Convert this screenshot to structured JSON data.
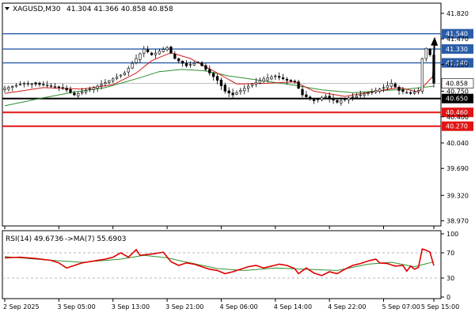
{
  "colors": {
    "background": "#ffffff",
    "grid": "#c8c8c8",
    "candle": "#000000",
    "ma_fast": "#d11b1b",
    "ma_slow": "#2f8f2f",
    "level_blue": "#2a5da8",
    "level_black": "#000000",
    "level_red": "#e11515",
    "rsi_line": "#e00000",
    "rsi_ma": "#2f8f2f",
    "arrow": "#000000"
  },
  "chart_data": [
    {
      "type": "candlestick",
      "title": "XAGUSD,M30",
      "ohlc": "41.304 41.366 40.858 40.858",
      "ylim": [
        38.9,
        41.96
      ],
      "y_ticks": [
        "41.820",
        "41.470",
        "41.120",
        "40.750",
        "40.400",
        "40.040",
        "39.690",
        "39.320",
        "38.970"
      ],
      "x_ticks": [
        "2 Sep 2025",
        "3 Sep 05:00",
        "3 Sep 13:00",
        "3 Sep 21:00",
        "4 Sep 06:00",
        "4 Sep 14:00",
        "4 Sep 22:00",
        "5 Sep 07:00",
        "5 Sep 15:00"
      ],
      "levels": [
        {
          "value": 41.54,
          "label": "41.540",
          "color": "blue"
        },
        {
          "value": 41.33,
          "label": "41.330",
          "color": "blue"
        },
        {
          "value": 41.14,
          "label": "41.140",
          "color": "blue"
        },
        {
          "value": 40.65,
          "label": "40.650",
          "color": "black"
        },
        {
          "value": 40.46,
          "label": "40.460",
          "color": "red"
        },
        {
          "value": 40.27,
          "label": "40.270",
          "color": "red"
        }
      ],
      "current_price": {
        "value": 40.858,
        "label": "40.858"
      },
      "close_anchors": [
        [
          0,
          40.79
        ],
        [
          5,
          40.86
        ],
        [
          10,
          40.84
        ],
        [
          15,
          40.8
        ],
        [
          18,
          40.7
        ],
        [
          21,
          40.76
        ],
        [
          24,
          40.82
        ],
        [
          28,
          40.92
        ],
        [
          31,
          41.0
        ],
        [
          34,
          41.2
        ],
        [
          36,
          41.33
        ],
        [
          38,
          41.25
        ],
        [
          40,
          41.3
        ],
        [
          42,
          41.35
        ],
        [
          44,
          41.2
        ],
        [
          47,
          41.1
        ],
        [
          50,
          41.15
        ],
        [
          53,
          41.0
        ],
        [
          55,
          40.9
        ],
        [
          57,
          40.75
        ],
        [
          59,
          40.7
        ],
        [
          61,
          40.76
        ],
        [
          64,
          40.85
        ],
        [
          67,
          40.92
        ],
        [
          70,
          40.96
        ],
        [
          73,
          40.9
        ],
        [
          75,
          40.88
        ],
        [
          77,
          40.7
        ],
        [
          80,
          40.62
        ],
        [
          83,
          40.68
        ],
        [
          86,
          40.6
        ],
        [
          89,
          40.66
        ],
        [
          92,
          40.7
        ],
        [
          95,
          40.74
        ],
        [
          98,
          40.8
        ],
        [
          100,
          40.86
        ],
        [
          102,
          40.76
        ],
        [
          105,
          40.72
        ],
        [
          107,
          40.76
        ],
        [
          108,
          41.2
        ],
        [
          109,
          41.34
        ],
        [
          110,
          41.25
        ],
        [
          111,
          40.86
        ]
      ],
      "ma_fast_anchors": [
        [
          0,
          40.72
        ],
        [
          10,
          40.8
        ],
        [
          20,
          40.78
        ],
        [
          28,
          40.84
        ],
        [
          34,
          41.0
        ],
        [
          38,
          41.17
        ],
        [
          43,
          41.28
        ],
        [
          48,
          41.2
        ],
        [
          55,
          41.0
        ],
        [
          60,
          40.85
        ],
        [
          68,
          40.86
        ],
        [
          75,
          40.88
        ],
        [
          80,
          40.75
        ],
        [
          88,
          40.68
        ],
        [
          96,
          40.75
        ],
        [
          102,
          40.8
        ],
        [
          107,
          40.74
        ],
        [
          111,
          40.97
        ]
      ],
      "ma_slow_anchors": [
        [
          0,
          40.55
        ],
        [
          10,
          40.66
        ],
        [
          18,
          40.74
        ],
        [
          26,
          40.8
        ],
        [
          34,
          40.92
        ],
        [
          40,
          41.02
        ],
        [
          46,
          41.05
        ],
        [
          52,
          41.03
        ],
        [
          58,
          40.96
        ],
        [
          66,
          40.9
        ],
        [
          74,
          40.84
        ],
        [
          82,
          40.77
        ],
        [
          90,
          40.73
        ],
        [
          98,
          40.76
        ],
        [
          104,
          40.78
        ],
        [
          111,
          40.82
        ]
      ],
      "forecast_arrow": {
        "from_value": 40.858,
        "to_value": 41.54
      }
    },
    {
      "type": "line",
      "title": "RSI(14) 49.6736",
      "ma_label": "->MA(7) 55.6903",
      "ylim": [
        0,
        100
      ],
      "y_ticks": [
        "100",
        "70",
        "30",
        "0"
      ],
      "reference_levels": [
        70,
        30
      ],
      "rsi_anchors": [
        [
          0,
          62
        ],
        [
          4,
          63
        ],
        [
          8,
          61
        ],
        [
          12,
          58
        ],
        [
          14,
          54
        ],
        [
          16,
          46
        ],
        [
          18,
          50
        ],
        [
          20,
          54
        ],
        [
          22,
          56
        ],
        [
          24,
          58
        ],
        [
          26,
          60
        ],
        [
          28,
          63
        ],
        [
          30,
          70
        ],
        [
          32,
          63
        ],
        [
          34,
          75
        ],
        [
          35,
          66
        ],
        [
          38,
          68
        ],
        [
          41,
          71
        ],
        [
          43,
          56
        ],
        [
          45,
          50
        ],
        [
          47,
          54
        ],
        [
          49,
          52
        ],
        [
          51,
          48
        ],
        [
          53,
          44
        ],
        [
          55,
          42
        ],
        [
          57,
          37
        ],
        [
          59,
          40
        ],
        [
          61,
          44
        ],
        [
          63,
          48
        ],
        [
          65,
          50
        ],
        [
          67,
          46
        ],
        [
          69,
          49
        ],
        [
          71,
          52
        ],
        [
          73,
          50
        ],
        [
          75,
          45
        ],
        [
          76,
          37
        ],
        [
          78,
          46
        ],
        [
          80,
          38
        ],
        [
          82,
          34
        ],
        [
          84,
          40
        ],
        [
          86,
          37
        ],
        [
          88,
          44
        ],
        [
          90,
          50
        ],
        [
          92,
          53
        ],
        [
          94,
          57
        ],
        [
          96,
          60
        ],
        [
          97,
          54
        ],
        [
          99,
          53
        ],
        [
          101,
          49
        ],
        [
          103,
          50
        ],
        [
          104,
          41
        ],
        [
          105,
          49
        ],
        [
          106,
          44
        ],
        [
          107,
          47
        ],
        [
          108,
          76
        ],
        [
          109,
          74
        ],
        [
          110,
          71
        ],
        [
          111,
          49.7
        ]
      ],
      "rsi_ma_anchors": [
        [
          0,
          64
        ],
        [
          10,
          59
        ],
        [
          20,
          55
        ],
        [
          30,
          60
        ],
        [
          36,
          66
        ],
        [
          42,
          62
        ],
        [
          48,
          54
        ],
        [
          55,
          45
        ],
        [
          62,
          42
        ],
        [
          70,
          46
        ],
        [
          78,
          44
        ],
        [
          86,
          42
        ],
        [
          94,
          52
        ],
        [
          100,
          55
        ],
        [
          106,
          48
        ],
        [
          111,
          55.7
        ]
      ]
    }
  ]
}
